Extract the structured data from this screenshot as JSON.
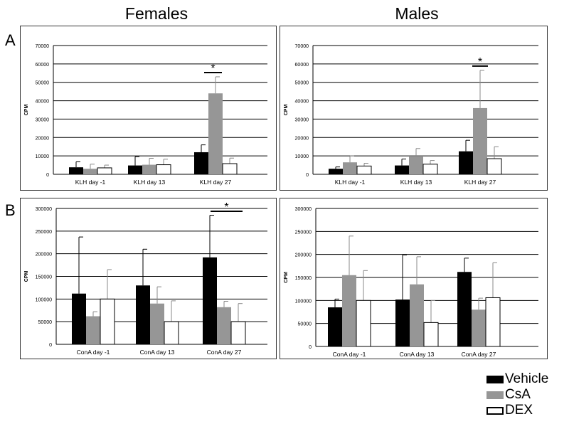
{
  "titles": {
    "left": "Females",
    "right": "Males"
  },
  "row_labels": {
    "a": "A",
    "b": "B"
  },
  "colors": {
    "Vehicle": "#000000",
    "CsA": "#969696",
    "DEX": "#ffffff"
  },
  "legend": [
    {
      "name": "Vehicle",
      "color": "#000000"
    },
    {
      "name": "CsA",
      "color": "#969696"
    },
    {
      "name": "DEX",
      "color": "#ffffff"
    }
  ],
  "chart_data": [
    {
      "type": "bar",
      "panel": "A-Females",
      "ylabel": "CPM",
      "ylim": [
        0,
        70000
      ],
      "yticks": [
        "0",
        "10000",
        "20000",
        "30000",
        "40000",
        "50000",
        "60000",
        "70000"
      ],
      "categories": [
        "KLH day -1",
        "KLH day 13",
        "KLH day 27"
      ],
      "series": [
        {
          "name": "Vehicle",
          "values": [
            3800,
            4800,
            12000
          ],
          "errors": [
            3000,
            4800,
            4000
          ]
        },
        {
          "name": "CsA",
          "values": [
            3000,
            5200,
            44000
          ],
          "errors": [
            2500,
            3500,
            9000
          ]
        },
        {
          "name": "DEX",
          "values": [
            3500,
            5200,
            5800
          ],
          "errors": [
            1500,
            3000,
            3000
          ]
        }
      ],
      "annotations": [
        "*"
      ],
      "grid": true
    },
    {
      "type": "bar",
      "panel": "A-Males",
      "ylabel": "CPM",
      "ylim": [
        0,
        70000
      ],
      "yticks": [
        "0",
        "10000",
        "20000",
        "30000",
        "40000",
        "50000",
        "60000",
        "70000"
      ],
      "categories": [
        "KLH day -1",
        "KLH day 13",
        "KLH day 27"
      ],
      "series": [
        {
          "name": "Vehicle",
          "values": [
            3000,
            4800,
            12500
          ],
          "errors": [
            1000,
            3500,
            6000
          ]
        },
        {
          "name": "CsA",
          "values": [
            6500,
            10000,
            36000
          ],
          "errors": [
            3500,
            4000,
            20500
          ]
        },
        {
          "name": "DEX",
          "values": [
            4500,
            5500,
            8500
          ],
          "errors": [
            1500,
            2000,
            6500
          ]
        }
      ],
      "annotations": [
        "*"
      ],
      "grid": true
    },
    {
      "type": "bar",
      "panel": "B-Females",
      "ylabel": "CPM",
      "ylim": [
        0,
        300000
      ],
      "yticks": [
        "0",
        "50000",
        "100000",
        "150000",
        "200000",
        "250000",
        "300000"
      ],
      "categories": [
        "ConA day -1",
        "ConA day 13",
        "ConA day 27"
      ],
      "series": [
        {
          "name": "Vehicle",
          "values": [
            112000,
            130000,
            192000
          ],
          "errors": [
            125000,
            80000,
            93000
          ]
        },
        {
          "name": "CsA",
          "values": [
            62000,
            90000,
            82000
          ],
          "errors": [
            10000,
            37000,
            13000
          ]
        },
        {
          "name": "DEX",
          "values": [
            100000,
            50000,
            50000
          ],
          "errors": [
            65000,
            46000,
            40000
          ]
        }
      ],
      "annotations": [
        "*"
      ],
      "grid": true
    },
    {
      "type": "bar",
      "panel": "B-Males",
      "ylabel": "CPM",
      "ylim": [
        0,
        300000
      ],
      "yticks": [
        "0",
        "50000",
        "100000",
        "150000",
        "200000",
        "250000",
        "300000"
      ],
      "categories": [
        "ConA day -1",
        "ConA day 13",
        "ConA day 27"
      ],
      "series": [
        {
          "name": "Vehicle",
          "values": [
            85000,
            102000,
            162000
          ],
          "errors": [
            18000,
            97000,
            30000
          ]
        },
        {
          "name": "CsA",
          "values": [
            155000,
            135000,
            80000
          ],
          "errors": [
            85000,
            60000,
            25000
          ]
        },
        {
          "name": "DEX",
          "values": [
            100000,
            52000,
            106000
          ],
          "errors": [
            65000,
            48000,
            76000
          ]
        }
      ],
      "annotations": [],
      "grid": true
    }
  ]
}
